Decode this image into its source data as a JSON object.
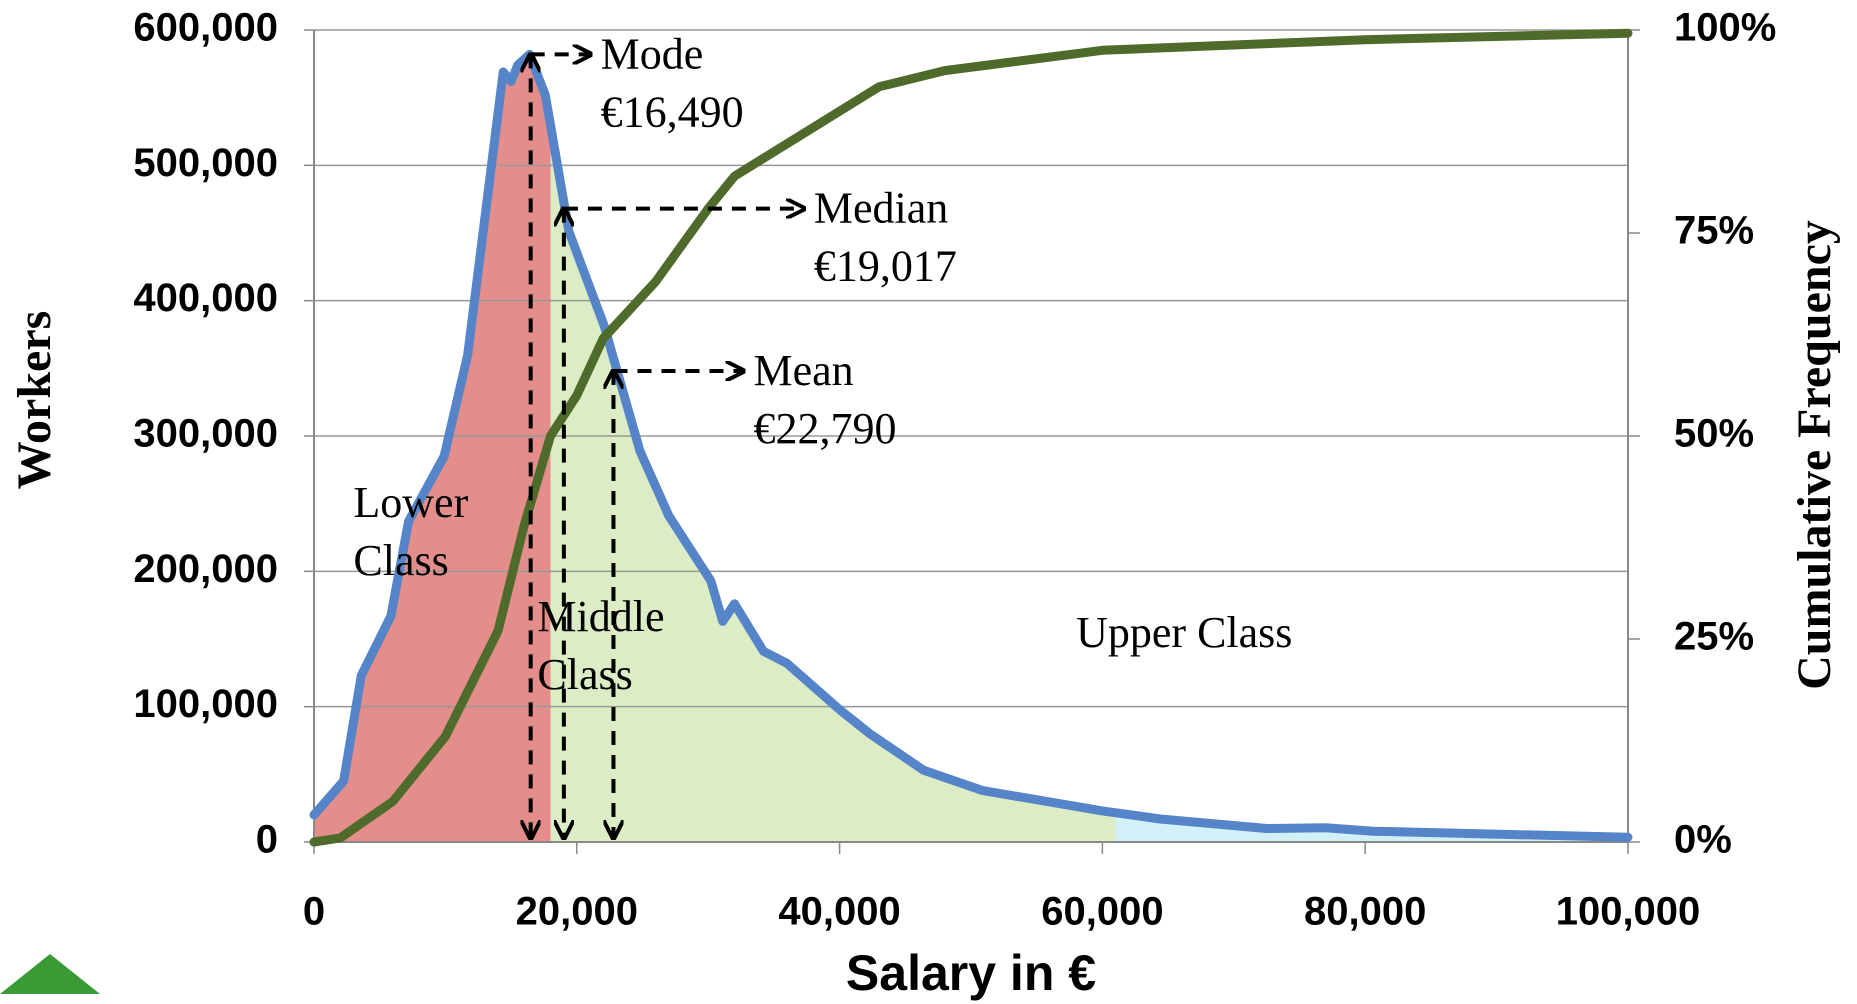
{
  "chart_data": {
    "type": "line",
    "xlabel": "Salary in €",
    "ylabel": "Workers",
    "y2label": "Cumulative Frequency",
    "xlim": [
      0,
      100000
    ],
    "ylim": [
      0,
      600000
    ],
    "y2lim": [
      0,
      100
    ],
    "xticks": [
      0,
      {
        "value": 20000,
        "label": "20,000"
      },
      {
        "value": 40000,
        "label": "40,000"
      },
      {
        "value": 60000,
        "label": "60,000"
      },
      {
        "value": 80000,
        "label": "80,000"
      },
      {
        "value": 100000,
        "label": "100,000"
      }
    ],
    "yticks": [
      0,
      {
        "value": 100000,
        "label": "100,000"
      },
      {
        "value": 200000,
        "label": "200,000"
      },
      {
        "value": 300000,
        "label": "300,000"
      },
      {
        "value": 400000,
        "label": "400,000"
      },
      {
        "value": 500000,
        "label": "500,000"
      },
      {
        "value": 600000,
        "label": "600,000"
      }
    ],
    "y2ticks": [
      {
        "value": 0,
        "label": "0%"
      },
      {
        "value": 25,
        "label": "25%"
      },
      {
        "value": 50,
        "label": "50%"
      },
      {
        "value": 75,
        "label": "75%"
      },
      {
        "value": 100,
        "label": "100%"
      }
    ],
    "grid": true,
    "series": [
      {
        "color": "#5585c8",
        "x": [
          0,
          2250,
          3600,
          5850,
          7200,
          9900,
          11700,
          14400,
          15000,
          15500,
          16400,
          17600,
          19400,
          22100,
          24800,
          27000,
          30200,
          31100,
          32000,
          34200,
          36000,
          40100,
          42300,
          46400,
          50900,
          60000,
          64400,
          72500,
          77000,
          80600,
          100000
        ],
        "values": [
          20000,
          45000,
          123000,
          167000,
          237000,
          285000,
          360000,
          569000,
          562000,
          574000,
          582000,
          552000,
          451000,
          381000,
          289000,
          241000,
          193000,
          163000,
          176000,
          141000,
          132000,
          97000,
          80000,
          53000,
          38000,
          23000,
          17000,
          10000,
          10500,
          8000,
          3500
        ]
      },
      {
        "color": "#4e6b2b",
        "axis": "y2",
        "x": [
          0,
          2000,
          6000,
          10000,
          14000,
          16000,
          18000,
          20000,
          22000,
          26000,
          30000,
          32000,
          40000,
          43000,
          48000,
          60000,
          80000,
          100000
        ],
        "values": [
          0,
          0.5,
          5,
          13,
          26,
          39,
          50,
          55,
          62,
          69,
          78,
          82,
          90,
          93,
          95,
          97.5,
          98.8,
          99.6
        ]
      }
    ],
    "regions": [
      {
        "label": "Lower Class",
        "from": 0,
        "to": 18000,
        "color": "#e38e8a"
      },
      {
        "label": "Middle Class",
        "from": 18000,
        "to": 61000,
        "color": "#dcedc6"
      },
      {
        "label": "Upper Class",
        "from": 61000,
        "to": 100000,
        "color": "#d2f0f7"
      }
    ],
    "annotations": [
      {
        "label": "Mode",
        "value": 16490,
        "value_label": "€16,490"
      },
      {
        "label": "Median",
        "value": 19017,
        "value_label": "€19,017"
      },
      {
        "label": "Mean",
        "value": 22790,
        "value_label": "€22,790"
      }
    ]
  }
}
